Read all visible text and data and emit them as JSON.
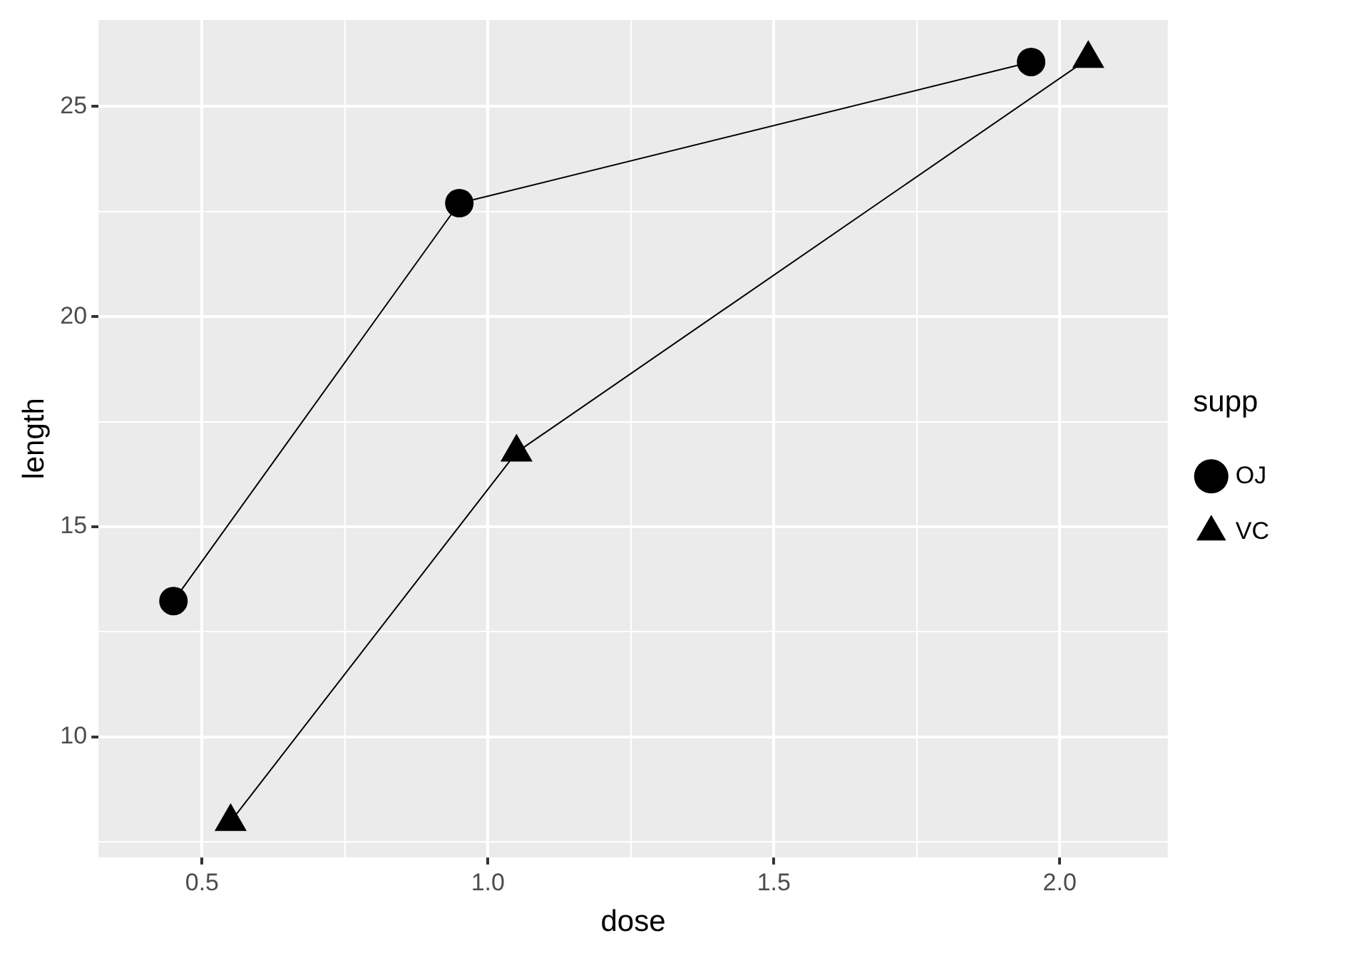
{
  "chart_data": {
    "type": "line",
    "xlabel": "dose",
    "ylabel": "length",
    "legend_title": "supp",
    "legend": "right",
    "grid": true,
    "xlim": [
      0.319,
      2.189
    ],
    "xticks": [
      {
        "value": 0.5,
        "label": "0.5"
      },
      {
        "value": 0.75,
        "label": null
      },
      {
        "value": 1,
        "label": "1.0"
      },
      {
        "value": 1.25,
        "label": null
      },
      1.5,
      {
        "value": 1.75,
        "label": null
      },
      {
        "value": 2,
        "label": "2.0"
      }
    ],
    "ylim": [
      7.13,
      27.06
    ],
    "yticks": [
      {
        "value": 7.5,
        "label": null
      },
      10,
      {
        "value": 12.5,
        "label": null
      },
      15,
      {
        "value": 17.5,
        "label": null
      },
      20,
      {
        "value": 22.5,
        "label": null
      },
      25
    ],
    "series": [
      {
        "name": "OJ",
        "color": "#000000",
        "marker": "circle",
        "x": [
          0.45,
          0.95,
          1.95
        ],
        "values": [
          13.23,
          22.7,
          26.06
        ]
      },
      {
        "name": "VC",
        "color": "#000000",
        "marker": "triangle",
        "x": [
          0.55,
          1.05,
          2.05
        ],
        "values": [
          7.98,
          16.77,
          26.14
        ]
      }
    ]
  }
}
